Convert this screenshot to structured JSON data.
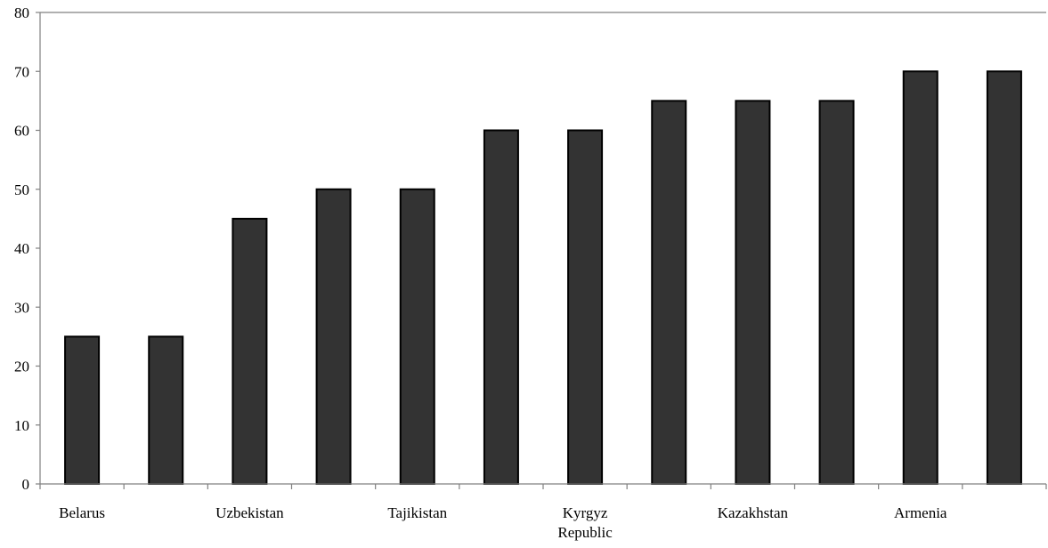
{
  "chart_data": {
    "type": "bar",
    "categories": [
      "Belarus",
      "",
      "Uzbekistan",
      "",
      "Tajikistan",
      "",
      "Kyrgyz Republic",
      "",
      "Kazakhstan",
      "",
      "Armenia",
      ""
    ],
    "category_label_lines": [
      [
        "Belarus"
      ],
      [],
      [
        "Uzbekistan"
      ],
      [],
      [
        "Tajikistan"
      ],
      [],
      [
        "Kyrgyz",
        "Republic"
      ],
      [],
      [
        "Kazakhstan"
      ],
      [],
      [
        "Armenia"
      ],
      []
    ],
    "values": [
      25,
      25,
      45,
      50,
      50,
      60,
      60,
      65,
      65,
      65,
      70,
      70
    ],
    "yticks": [
      "0",
      "10",
      "20",
      "30",
      "40",
      "50",
      "60",
      "70",
      "80"
    ],
    "ylim": [
      0,
      80
    ],
    "title": "",
    "xlabel": "",
    "ylabel": "",
    "grid": false,
    "legend": "none",
    "bar_color": "#333333",
    "bar_edge_color": "#000000",
    "axis_color": "#808080"
  }
}
